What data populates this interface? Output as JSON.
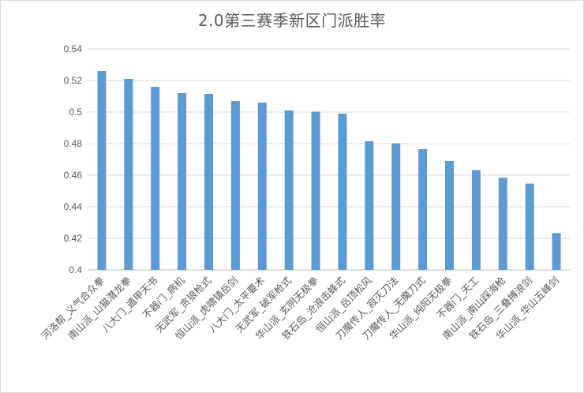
{
  "chart_data": {
    "type": "bar",
    "title": "2.0第三赛季新区门派胜率",
    "xlabel": "",
    "ylabel": "",
    "ylim": [
      0.4,
      0.54
    ],
    "y_ticks": [
      "0.4",
      "0.42",
      "0.44",
      "0.46",
      "0.48",
      "0.5",
      "0.52",
      "0.54"
    ],
    "grid": true,
    "bar_color": "#5B9BD5",
    "categories": [
      "河洛帮_义气合众拳",
      "南山派_山猫潜龙拳",
      "八大门_遁甲天书",
      "不器门_病机",
      "无武军_贪狼枪式",
      "恒山派_虎啸镇岳剑",
      "八大门_太平要术",
      "无武军_破军枪式",
      "华山派_玄阴无极拳",
      "铁石岛_沧浪击蜂式",
      "恒山派_岳顶松风",
      "刀魔传人_寂灭刀法",
      "刀魔传人_无魔刀式",
      "华山派_纯阳无极拳",
      "不器门_天工",
      "南山派_南山踩海枪",
      "铁石岛_三叠搏浪剑",
      "华山派_华山五峰剑"
    ],
    "values": [
      0.526,
      0.521,
      0.516,
      0.512,
      0.5115,
      0.507,
      0.506,
      0.501,
      0.5003,
      0.499,
      0.4815,
      0.4802,
      0.4765,
      0.469,
      0.4632,
      0.4584,
      0.4547,
      0.4233
    ]
  }
}
